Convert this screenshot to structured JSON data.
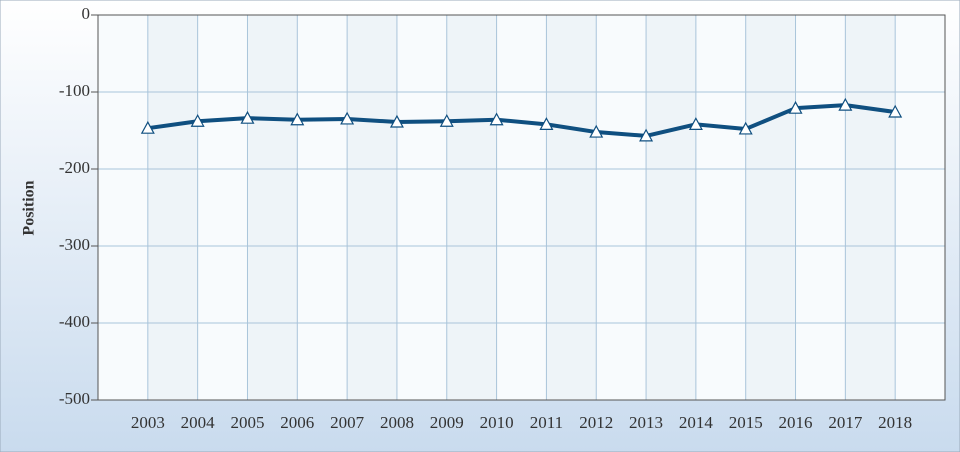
{
  "chart_data": {
    "type": "line",
    "y_label": "Position",
    "categories": [
      "2003",
      "2004",
      "2005",
      "2006",
      "2007",
      "2008",
      "2009",
      "2010",
      "2011",
      "2012",
      "2013",
      "2014",
      "2015",
      "2016",
      "2017",
      "2018"
    ],
    "series": [
      {
        "name": "Position",
        "color": "#0f4f80",
        "values": [
          -147,
          -138,
          -134,
          -136,
          -135,
          -139,
          -138,
          -136,
          -142,
          -152,
          -157,
          -142,
          -148,
          -121,
          -117,
          -126
        ]
      }
    ],
    "ylim": [
      -500,
      0
    ],
    "yticks": [
      0,
      -100,
      -200,
      -300,
      -400,
      -500
    ],
    "grid": true
  }
}
